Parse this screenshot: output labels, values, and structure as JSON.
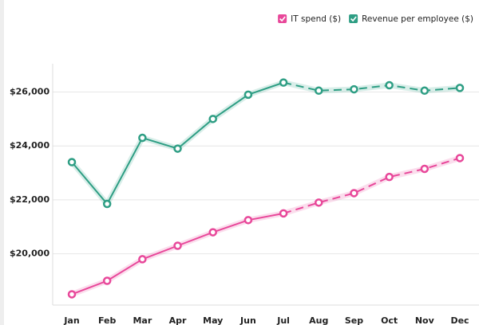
{
  "chart_data": {
    "type": "line",
    "categories": [
      "Jan",
      "Feb",
      "Mar",
      "Apr",
      "May",
      "Jun",
      "Jul",
      "Aug",
      "Sep",
      "Oct",
      "Nov",
      "Dec"
    ],
    "series": [
      {
        "name": "IT spend ($)",
        "color": "#e8489a",
        "values": [
          18500,
          19000,
          19800,
          20300,
          20800,
          21250,
          21500,
          21900,
          22250,
          22850,
          23150,
          23550
        ]
      },
      {
        "name": "Revenue per employee ($)",
        "color": "#2e9e84",
        "values": [
          23400,
          21850,
          24300,
          23900,
          25000,
          25900,
          26350,
          26050,
          26100,
          26250,
          26050,
          26150
        ]
      }
    ],
    "dash_from": "Jul",
    "ylim": [
      18100,
      26900
    ],
    "yticks": [
      {
        "value": 20000,
        "label": "$20,000"
      },
      {
        "value": 22000,
        "label": "$22,000"
      },
      {
        "value": 24000,
        "label": "$24,000"
      },
      {
        "value": 26000,
        "label": "$26,000"
      }
    ],
    "grid": true,
    "legend": "top-right"
  }
}
